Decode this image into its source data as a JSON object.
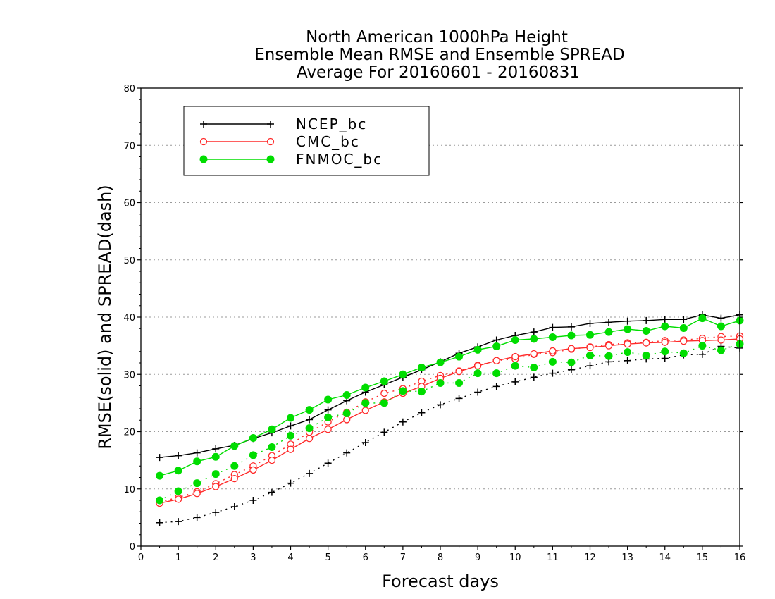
{
  "chart_data": {
    "type": "line",
    "title_lines": [
      "North American 1000hPa Height",
      "Ensemble Mean RMSE and Ensemble SPREAD",
      "Average For 20160601 - 20160831"
    ],
    "xlabel": "Forecast days",
    "ylabel": "RMSE(solid) and SPREAD(dash)",
    "xlim": [
      0,
      16
    ],
    "ylim": [
      0,
      80
    ],
    "xticks": [
      0,
      1,
      2,
      3,
      4,
      5,
      6,
      7,
      8,
      9,
      10,
      11,
      12,
      13,
      14,
      15,
      16
    ],
    "yticks": [
      0,
      10,
      20,
      30,
      40,
      50,
      60,
      70,
      80
    ],
    "grid": "horizontal dotted",
    "legend_position": "top-left",
    "x": [
      0.5,
      1,
      1.5,
      2,
      2.5,
      3,
      3.5,
      4,
      4.5,
      5,
      5.5,
      6,
      6.5,
      7,
      7.5,
      8,
      8.5,
      9,
      9.5,
      10,
      10.5,
      11,
      11.5,
      12,
      12.5,
      13,
      13.5,
      14,
      14.5,
      15,
      15.5,
      16
    ],
    "series": [
      {
        "name": "NCEP_bc",
        "color": "#000000",
        "marker": "plus",
        "rmse": [
          15.5,
          15.8,
          16.3,
          17.0,
          17.6,
          18.8,
          19.8,
          21.0,
          22.1,
          23.8,
          25.4,
          26.9,
          28.2,
          29.5,
          30.8,
          32.2,
          33.7,
          34.8,
          36.0,
          36.8,
          37.4,
          38.2,
          38.3,
          38.9,
          39.1,
          39.3,
          39.4,
          39.6,
          39.6,
          40.4,
          39.8,
          40.4
        ],
        "spread": [
          4.1,
          4.3,
          5.0,
          5.9,
          6.9,
          8.0,
          9.4,
          11.0,
          12.7,
          14.5,
          16.3,
          18.1,
          19.9,
          21.7,
          23.3,
          24.7,
          25.8,
          26.9,
          27.9,
          28.7,
          29.5,
          30.2,
          30.8,
          31.5,
          32.2,
          32.4,
          32.7,
          32.8,
          33.4,
          33.5,
          34.9,
          34.6
        ]
      },
      {
        "name": "CMC_bc",
        "color": "#ff2a2a",
        "marker": "open-circle",
        "rmse": [
          7.5,
          8.2,
          9.2,
          10.4,
          11.8,
          13.3,
          15.0,
          16.9,
          18.8,
          20.4,
          22.1,
          23.7,
          25.2,
          26.7,
          27.9,
          29.3,
          30.5,
          31.5,
          32.4,
          33.1,
          33.6,
          34.1,
          34.5,
          34.7,
          35.0,
          35.3,
          35.5,
          35.6,
          35.8,
          35.9,
          36.0,
          36.2
        ],
        "spread": [
          7.7,
          8.5,
          9.5,
          10.9,
          12.5,
          14.0,
          15.8,
          17.8,
          19.9,
          21.7,
          23.4,
          25.2,
          26.7,
          27.5,
          28.8,
          29.8,
          30.6,
          31.6,
          32.4,
          32.7,
          33.5,
          33.8,
          34.4,
          34.8,
          35.2,
          35.5,
          35.6,
          35.9,
          36.0,
          36.3,
          36.6,
          36.7
        ]
      },
      {
        "name": "FNMOC_bc",
        "color": "#00dd00",
        "marker": "filled-circle",
        "rmse": [
          12.3,
          13.2,
          14.8,
          15.6,
          17.5,
          18.9,
          20.4,
          22.4,
          23.8,
          25.6,
          26.4,
          27.7,
          28.8,
          30.0,
          31.2,
          32.1,
          33.1,
          34.3,
          34.9,
          36.0,
          36.2,
          36.5,
          36.8,
          36.9,
          37.4,
          37.9,
          37.6,
          38.4,
          38.1,
          39.8,
          38.4,
          39.4
        ],
        "spread": [
          8.0,
          9.6,
          11.0,
          12.6,
          14.0,
          15.9,
          17.3,
          19.3,
          20.6,
          22.5,
          23.2,
          25.0,
          25.0,
          27.1,
          27.0,
          28.5,
          28.5,
          30.2,
          30.2,
          31.5,
          31.2,
          32.2,
          32.1,
          33.3,
          33.2,
          33.9,
          33.3,
          34.0,
          33.7,
          35.0,
          34.2,
          35.3
        ]
      }
    ]
  }
}
